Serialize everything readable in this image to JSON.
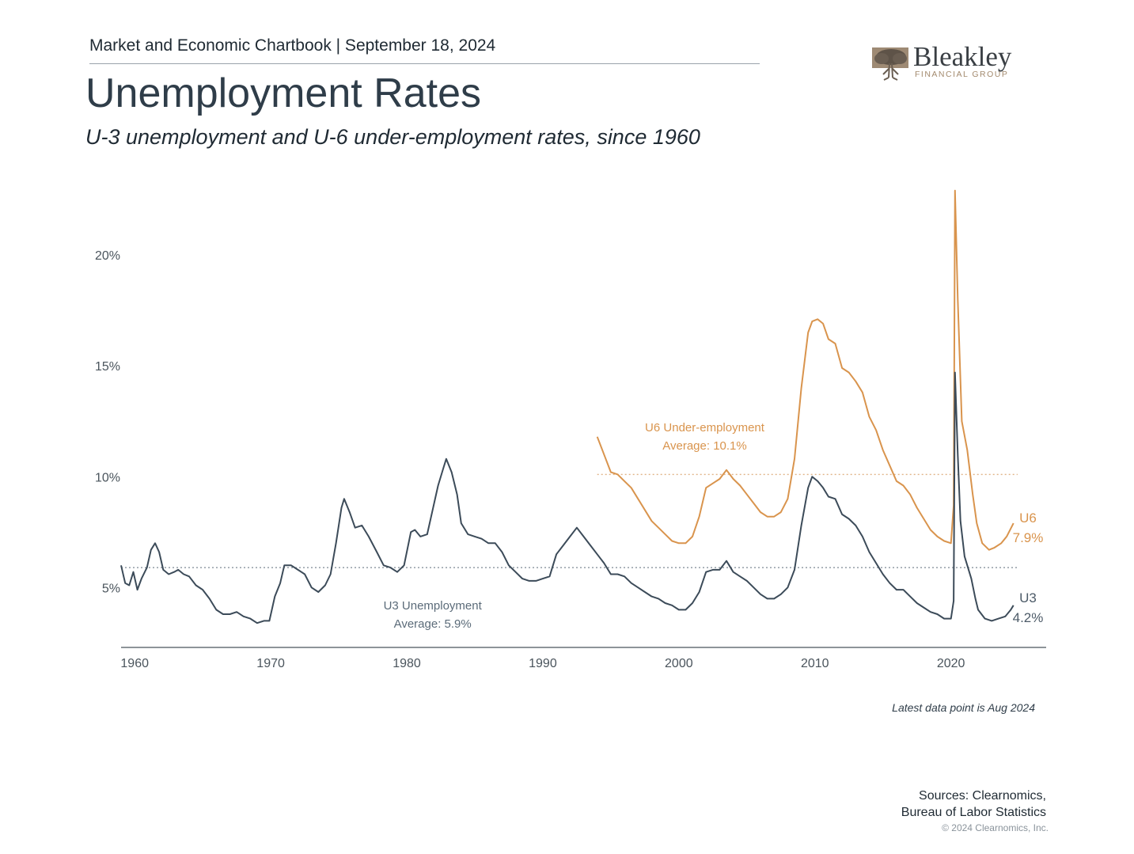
{
  "header": {
    "report_line": "Market and Economic Chartbook | September 18, 2024",
    "title": "Unemployment Rates",
    "subtitle": "U-3 unemployment and U-6 under-employment rates, since 1960"
  },
  "logo": {
    "name": "Bleakley",
    "tagline": "FINANCIAL GROUP",
    "icon": "oak-tree-icon"
  },
  "footer": {
    "note": "Latest data point is Aug 2024",
    "sources_line1": "Sources: Clearnomics,",
    "sources_line2": "Bureau of Labor Statistics",
    "copyright": "© 2024 Clearnomics, Inc."
  },
  "colors": {
    "u3": "#3c4b59",
    "u6": "#d9944d",
    "axis": "#4a545c",
    "tick_text": "#4a545c"
  },
  "chart_data": {
    "type": "line",
    "title": "Unemployment Rates",
    "subtitle": "U-3 unemployment and U-6 under-employment rates, since 1960",
    "xlim": [
      1959,
      2027
    ],
    "ylim": [
      2.3,
      23
    ],
    "x_ticks": [
      1960,
      1970,
      1980,
      1990,
      2000,
      2010,
      2020
    ],
    "x_tick_labels": [
      "1960",
      "1970",
      "1980",
      "1990",
      "2000",
      "2010",
      "2020"
    ],
    "y_ticks": [
      5,
      10,
      15,
      20
    ],
    "y_tick_labels": [
      "5%",
      "10%",
      "15%",
      "20%"
    ],
    "grid": false,
    "legend": "none (series labeled inline)",
    "series": [
      {
        "name": "U3 Unemployment",
        "end_label": "U3",
        "latest_label": "4.2%",
        "average": 5.9,
        "average_label": "Average: 5.9%",
        "points": [
          [
            1959.0,
            6.0
          ],
          [
            1959.3,
            5.2
          ],
          [
            1959.6,
            5.1
          ],
          [
            1959.9,
            5.7
          ],
          [
            1960.2,
            4.9
          ],
          [
            1960.5,
            5.4
          ],
          [
            1960.9,
            5.9
          ],
          [
            1961.2,
            6.7
          ],
          [
            1961.5,
            7.0
          ],
          [
            1961.8,
            6.6
          ],
          [
            1962.1,
            5.8
          ],
          [
            1962.5,
            5.6
          ],
          [
            1962.9,
            5.7
          ],
          [
            1963.2,
            5.8
          ],
          [
            1963.6,
            5.6
          ],
          [
            1964.0,
            5.5
          ],
          [
            1964.5,
            5.1
          ],
          [
            1965.0,
            4.9
          ],
          [
            1965.5,
            4.5
          ],
          [
            1966.0,
            4.0
          ],
          [
            1966.5,
            3.8
          ],
          [
            1967.0,
            3.8
          ],
          [
            1967.5,
            3.9
          ],
          [
            1968.0,
            3.7
          ],
          [
            1968.5,
            3.6
          ],
          [
            1969.0,
            3.4
          ],
          [
            1969.5,
            3.5
          ],
          [
            1969.9,
            3.5
          ],
          [
            1970.3,
            4.6
          ],
          [
            1970.7,
            5.2
          ],
          [
            1971.0,
            6.0
          ],
          [
            1971.5,
            6.0
          ],
          [
            1972.0,
            5.8
          ],
          [
            1972.5,
            5.6
          ],
          [
            1973.0,
            5.0
          ],
          [
            1973.5,
            4.8
          ],
          [
            1974.0,
            5.1
          ],
          [
            1974.4,
            5.6
          ],
          [
            1974.8,
            7.0
          ],
          [
            1975.2,
            8.6
          ],
          [
            1975.4,
            9.0
          ],
          [
            1975.8,
            8.4
          ],
          [
            1976.2,
            7.7
          ],
          [
            1976.7,
            7.8
          ],
          [
            1977.2,
            7.3
          ],
          [
            1977.8,
            6.6
          ],
          [
            1978.3,
            6.0
          ],
          [
            1978.8,
            5.9
          ],
          [
            1979.3,
            5.7
          ],
          [
            1979.8,
            6.0
          ],
          [
            1980.3,
            7.5
          ],
          [
            1980.6,
            7.6
          ],
          [
            1981.0,
            7.3
          ],
          [
            1981.5,
            7.4
          ],
          [
            1981.9,
            8.5
          ],
          [
            1982.3,
            9.6
          ],
          [
            1982.7,
            10.4
          ],
          [
            1982.9,
            10.8
          ],
          [
            1983.3,
            10.2
          ],
          [
            1983.7,
            9.2
          ],
          [
            1984.0,
            7.9
          ],
          [
            1984.5,
            7.4
          ],
          [
            1985.0,
            7.3
          ],
          [
            1985.5,
            7.2
          ],
          [
            1986.0,
            7.0
          ],
          [
            1986.5,
            7.0
          ],
          [
            1987.0,
            6.6
          ],
          [
            1987.5,
            6.0
          ],
          [
            1988.0,
            5.7
          ],
          [
            1988.5,
            5.4
          ],
          [
            1989.0,
            5.3
          ],
          [
            1989.5,
            5.3
          ],
          [
            1990.0,
            5.4
          ],
          [
            1990.5,
            5.5
          ],
          [
            1991.0,
            6.5
          ],
          [
            1991.5,
            6.9
          ],
          [
            1992.0,
            7.3
          ],
          [
            1992.5,
            7.7
          ],
          [
            1993.0,
            7.3
          ],
          [
            1993.5,
            6.9
          ],
          [
            1994.0,
            6.5
          ],
          [
            1994.5,
            6.1
          ],
          [
            1995.0,
            5.6
          ],
          [
            1995.5,
            5.6
          ],
          [
            1996.0,
            5.5
          ],
          [
            1996.5,
            5.2
          ],
          [
            1997.0,
            5.0
          ],
          [
            1997.5,
            4.8
          ],
          [
            1998.0,
            4.6
          ],
          [
            1998.5,
            4.5
          ],
          [
            1999.0,
            4.3
          ],
          [
            1999.5,
            4.2
          ],
          [
            2000.0,
            4.0
          ],
          [
            2000.5,
            4.0
          ],
          [
            2001.0,
            4.3
          ],
          [
            2001.5,
            4.8
          ],
          [
            2002.0,
            5.7
          ],
          [
            2002.5,
            5.8
          ],
          [
            2003.0,
            5.8
          ],
          [
            2003.5,
            6.2
          ],
          [
            2004.0,
            5.7
          ],
          [
            2004.5,
            5.5
          ],
          [
            2005.0,
            5.3
          ],
          [
            2005.5,
            5.0
          ],
          [
            2006.0,
            4.7
          ],
          [
            2006.5,
            4.5
          ],
          [
            2007.0,
            4.5
          ],
          [
            2007.5,
            4.7
          ],
          [
            2008.0,
            5.0
          ],
          [
            2008.5,
            5.8
          ],
          [
            2009.0,
            7.8
          ],
          [
            2009.5,
            9.5
          ],
          [
            2009.8,
            10.0
          ],
          [
            2010.2,
            9.8
          ],
          [
            2010.6,
            9.5
          ],
          [
            2011.0,
            9.1
          ],
          [
            2011.5,
            9.0
          ],
          [
            2012.0,
            8.3
          ],
          [
            2012.5,
            8.1
          ],
          [
            2013.0,
            7.8
          ],
          [
            2013.5,
            7.3
          ],
          [
            2014.0,
            6.6
          ],
          [
            2014.5,
            6.1
          ],
          [
            2015.0,
            5.6
          ],
          [
            2015.5,
            5.2
          ],
          [
            2016.0,
            4.9
          ],
          [
            2016.5,
            4.9
          ],
          [
            2017.0,
            4.6
          ],
          [
            2017.5,
            4.3
          ],
          [
            2018.0,
            4.1
          ],
          [
            2018.5,
            3.9
          ],
          [
            2019.0,
            3.8
          ],
          [
            2019.5,
            3.6
          ],
          [
            2020.0,
            3.6
          ],
          [
            2020.2,
            4.4
          ],
          [
            2020.3,
            14.7
          ],
          [
            2020.5,
            11.0
          ],
          [
            2020.7,
            8.0
          ],
          [
            2021.0,
            6.4
          ],
          [
            2021.5,
            5.4
          ],
          [
            2021.8,
            4.5
          ],
          [
            2022.0,
            4.0
          ],
          [
            2022.5,
            3.6
          ],
          [
            2023.0,
            3.5
          ],
          [
            2023.5,
            3.6
          ],
          [
            2024.0,
            3.7
          ],
          [
            2024.4,
            4.0
          ],
          [
            2024.6,
            4.2
          ]
        ]
      },
      {
        "name": "U6 Under-employment",
        "end_label": "U6",
        "latest_label": "7.9%",
        "average": 10.1,
        "average_label": "Average: 10.1%",
        "points": [
          [
            1994.0,
            11.8
          ],
          [
            1994.5,
            11.0
          ],
          [
            1995.0,
            10.2
          ],
          [
            1995.5,
            10.1
          ],
          [
            1996.0,
            9.8
          ],
          [
            1996.5,
            9.5
          ],
          [
            1997.0,
            9.0
          ],
          [
            1997.5,
            8.5
          ],
          [
            1998.0,
            8.0
          ],
          [
            1998.5,
            7.7
          ],
          [
            1999.0,
            7.4
          ],
          [
            1999.5,
            7.1
          ],
          [
            2000.0,
            7.0
          ],
          [
            2000.5,
            7.0
          ],
          [
            2001.0,
            7.3
          ],
          [
            2001.5,
            8.2
          ],
          [
            2002.0,
            9.5
          ],
          [
            2002.5,
            9.7
          ],
          [
            2003.0,
            9.9
          ],
          [
            2003.5,
            10.3
          ],
          [
            2004.0,
            9.9
          ],
          [
            2004.5,
            9.6
          ],
          [
            2005.0,
            9.2
          ],
          [
            2005.5,
            8.8
          ],
          [
            2006.0,
            8.4
          ],
          [
            2006.5,
            8.2
          ],
          [
            2007.0,
            8.2
          ],
          [
            2007.5,
            8.4
          ],
          [
            2008.0,
            9.0
          ],
          [
            2008.5,
            10.8
          ],
          [
            2009.0,
            14.0
          ],
          [
            2009.5,
            16.5
          ],
          [
            2009.8,
            17.0
          ],
          [
            2010.2,
            17.1
          ],
          [
            2010.6,
            16.9
          ],
          [
            2011.0,
            16.2
          ],
          [
            2011.5,
            16.0
          ],
          [
            2012.0,
            14.9
          ],
          [
            2012.5,
            14.7
          ],
          [
            2013.0,
            14.3
          ],
          [
            2013.5,
            13.8
          ],
          [
            2014.0,
            12.7
          ],
          [
            2014.5,
            12.1
          ],
          [
            2015.0,
            11.2
          ],
          [
            2015.5,
            10.5
          ],
          [
            2016.0,
            9.8
          ],
          [
            2016.5,
            9.6
          ],
          [
            2017.0,
            9.2
          ],
          [
            2017.5,
            8.6
          ],
          [
            2018.0,
            8.1
          ],
          [
            2018.5,
            7.6
          ],
          [
            2019.0,
            7.3
          ],
          [
            2019.5,
            7.1
          ],
          [
            2020.0,
            7.0
          ],
          [
            2020.2,
            8.7
          ],
          [
            2020.3,
            22.9
          ],
          [
            2020.5,
            18.0
          ],
          [
            2020.8,
            12.5
          ],
          [
            2021.2,
            11.2
          ],
          [
            2021.6,
            9.2
          ],
          [
            2021.9,
            7.9
          ],
          [
            2022.3,
            7.0
          ],
          [
            2022.8,
            6.7
          ],
          [
            2023.2,
            6.8
          ],
          [
            2023.7,
            7.0
          ],
          [
            2024.1,
            7.3
          ],
          [
            2024.6,
            7.9
          ]
        ]
      }
    ]
  }
}
